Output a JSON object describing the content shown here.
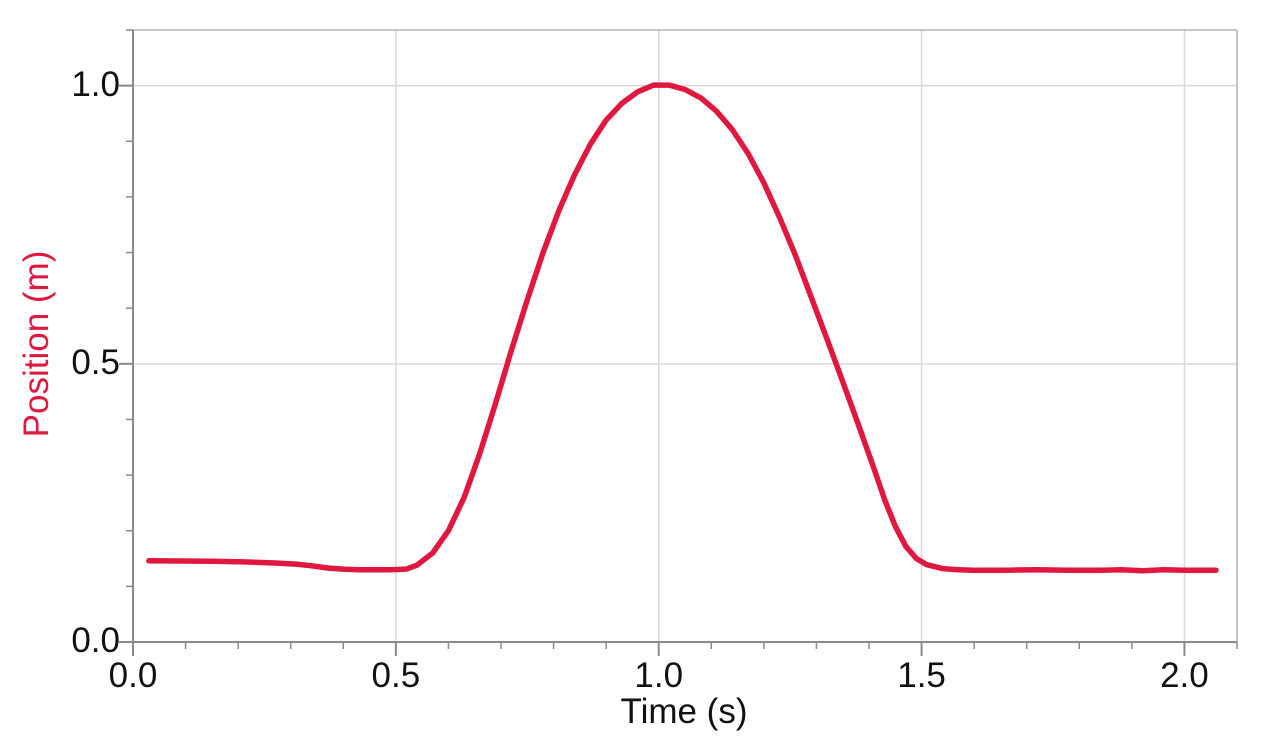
{
  "chart_data": {
    "type": "line",
    "title": "",
    "xlabel": "Time (s)",
    "ylabel": "Position (m)",
    "xlim": [
      0,
      2.1
    ],
    "ylim": [
      0,
      1.1
    ],
    "grid": true,
    "legend_position": "none",
    "x_ticks": {
      "major": [
        {
          "value": 0.0,
          "label": "0.0"
        },
        {
          "value": 0.5,
          "label": "0.5"
        },
        {
          "value": 1.0,
          "label": "1.0"
        },
        {
          "value": 1.5,
          "label": "1.5"
        },
        {
          "value": 2.0,
          "label": "2.0"
        }
      ],
      "minor_step": 0.1
    },
    "y_ticks": {
      "major": [
        {
          "value": 0.0,
          "label": "0.0"
        },
        {
          "value": 0.5,
          "label": "0.5"
        },
        {
          "value": 1.0,
          "label": "1.0"
        }
      ],
      "minor_step": 0.1
    },
    "gridline_x_values": [
      0.5,
      1.0,
      1.5,
      2.0
    ],
    "gridline_y_values": [
      0.5,
      1.0
    ],
    "series": [
      {
        "name": "Position",
        "color": "#e0173f",
        "points": [
          [
            0.03,
            0.146
          ],
          [
            0.09,
            0.1455
          ],
          [
            0.15,
            0.145
          ],
          [
            0.21,
            0.144
          ],
          [
            0.27,
            0.142
          ],
          [
            0.31,
            0.14
          ],
          [
            0.34,
            0.137
          ],
          [
            0.37,
            0.133
          ],
          [
            0.4,
            0.131
          ],
          [
            0.43,
            0.13
          ],
          [
            0.46,
            0.13
          ],
          [
            0.49,
            0.13
          ],
          [
            0.52,
            0.131
          ],
          [
            0.54,
            0.138
          ],
          [
            0.57,
            0.16
          ],
          [
            0.6,
            0.2
          ],
          [
            0.63,
            0.26
          ],
          [
            0.66,
            0.34
          ],
          [
            0.69,
            0.43
          ],
          [
            0.72,
            0.525
          ],
          [
            0.75,
            0.615
          ],
          [
            0.78,
            0.7
          ],
          [
            0.81,
            0.775
          ],
          [
            0.84,
            0.84
          ],
          [
            0.87,
            0.895
          ],
          [
            0.9,
            0.938
          ],
          [
            0.93,
            0.968
          ],
          [
            0.96,
            0.989
          ],
          [
            0.99,
            1.001
          ],
          [
            1.02,
            1.001
          ],
          [
            1.05,
            0.993
          ],
          [
            1.08,
            0.978
          ],
          [
            1.11,
            0.954
          ],
          [
            1.14,
            0.921
          ],
          [
            1.17,
            0.878
          ],
          [
            1.2,
            0.825
          ],
          [
            1.23,
            0.763
          ],
          [
            1.26,
            0.695
          ],
          [
            1.29,
            0.62
          ],
          [
            1.32,
            0.545
          ],
          [
            1.35,
            0.468
          ],
          [
            1.38,
            0.39
          ],
          [
            1.41,
            0.31
          ],
          [
            1.43,
            0.255
          ],
          [
            1.45,
            0.208
          ],
          [
            1.47,
            0.172
          ],
          [
            1.49,
            0.15
          ],
          [
            1.51,
            0.139
          ],
          [
            1.54,
            0.132
          ],
          [
            1.57,
            0.13
          ],
          [
            1.6,
            0.129
          ],
          [
            1.66,
            0.129
          ],
          [
            1.72,
            0.13
          ],
          [
            1.78,
            0.129
          ],
          [
            1.84,
            0.129
          ],
          [
            1.88,
            0.13
          ],
          [
            1.92,
            0.128
          ],
          [
            1.96,
            0.13
          ],
          [
            2.0,
            0.129
          ],
          [
            2.03,
            0.129
          ],
          [
            2.06,
            0.129
          ]
        ]
      }
    ]
  },
  "colors": {
    "background": "#ffffff",
    "curve": "#e0173f",
    "axis": "#8a8a8a",
    "border": "#b3b3b3",
    "gridline": "#d9d9d9",
    "tick_text": "#111111",
    "y_title_text": "#e0173f",
    "x_title_text": "#111111"
  }
}
